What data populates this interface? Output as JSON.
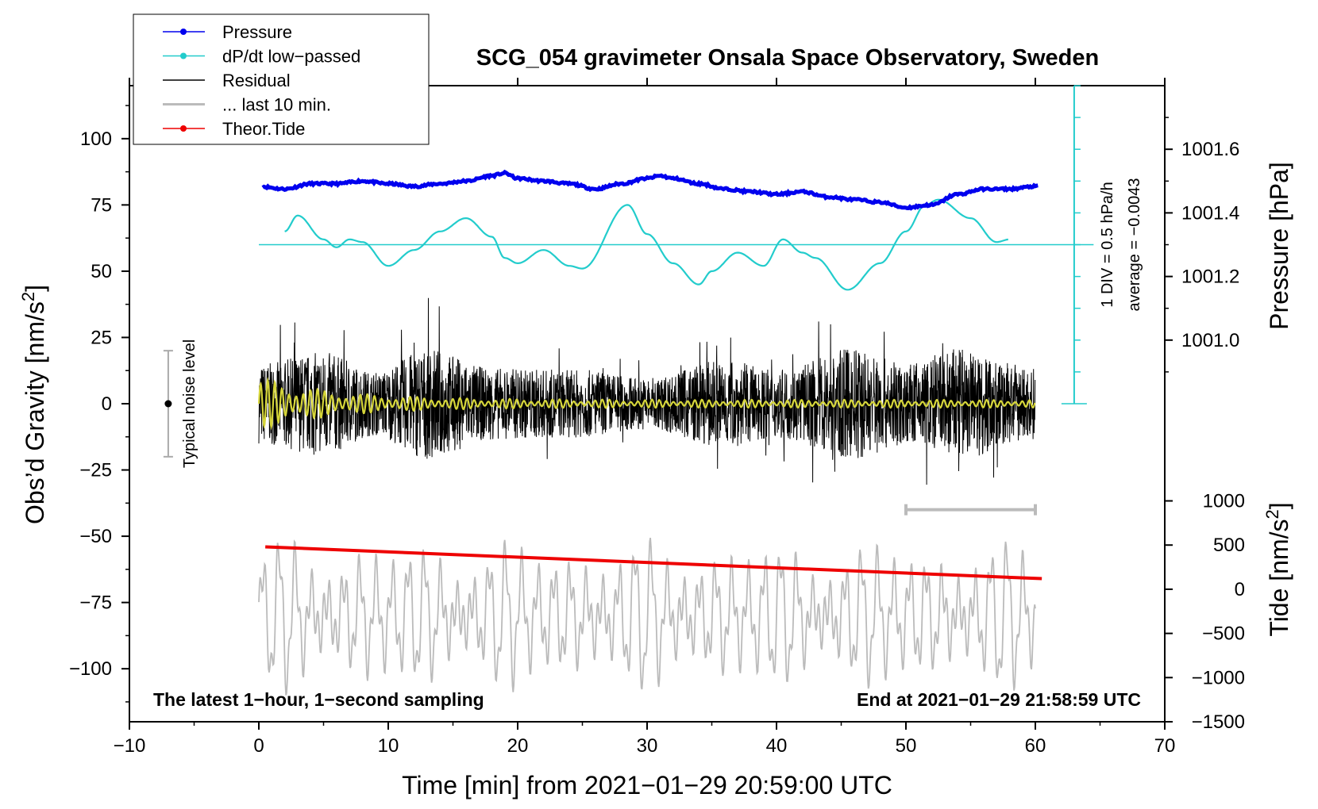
{
  "chart_data": {
    "type": "line",
    "title": "SCG_054 gravimeter Onsala Space Observatory, Sweden",
    "xlabel": "Time [min] from 2021−01−29 20:59:00 UTC",
    "ylabel_left": "Obs’d Gravity [nm/s²]",
    "ylabel_right_pressure": "Pressure [hPa]",
    "ylabel_right_tide": "Tide [nm/s²]",
    "xlim": [
      -10,
      70
    ],
    "ylim": [
      -120,
      120
    ],
    "x_ticks": [
      -10,
      0,
      10,
      20,
      30,
      40,
      50,
      60,
      70
    ],
    "x_tick_labels": [
      "−10",
      "0",
      "10",
      "20",
      "30",
      "40",
      "50",
      "60",
      "70"
    ],
    "y_ticks": [
      100,
      75,
      50,
      25,
      0,
      -25,
      -50,
      -75,
      -100
    ],
    "y_tick_labels": [
      "100",
      "75",
      "50",
      "25",
      "0",
      "−25",
      "−50",
      "−75",
      "−100"
    ],
    "pressure_axis": {
      "values": [
        1001.6,
        1001.4,
        1001.2,
        1001.0
      ],
      "labels": [
        "1001.6",
        "1001.4",
        "1001.2",
        "1001.0"
      ],
      "range": [
        1000.8,
        1001.8
      ]
    },
    "tide_axis": {
      "values": [
        1000,
        500,
        0,
        -500,
        -1000,
        -1500
      ],
      "labels": [
        "1000",
        "500",
        "0",
        "−500",
        "−1000",
        "−1500"
      ]
    },
    "legend": {
      "placement": "top-left",
      "entries": [
        {
          "label": "Pressure",
          "color": "#0000ee",
          "marker": true
        },
        {
          "label": "dP/dt low−passed",
          "color": "#22cccc",
          "marker": true
        },
        {
          "label": "Residual",
          "color": "#000000",
          "marker": false
        },
        {
          "label": "... last 10 min.",
          "color": "#bbbbbb",
          "marker": false
        },
        {
          "label": "Theor.Tide",
          "color": "#ee0000",
          "marker": true
        }
      ]
    },
    "series": [
      {
        "name": "Pressure",
        "color": "#0000ee",
        "x": [
          0,
          2,
          4,
          6,
          8,
          10,
          12,
          14,
          16,
          18,
          19,
          20,
          22,
          24,
          26,
          28,
          30,
          31,
          32,
          34,
          36,
          38,
          40,
          42,
          44,
          46,
          48,
          50,
          52,
          54,
          56,
          58,
          60
        ],
        "y": [
          82,
          81,
          83,
          83,
          84,
          83,
          82,
          83,
          84,
          86,
          87,
          85,
          84,
          83,
          81,
          83,
          85,
          86,
          85,
          83,
          81,
          80,
          79,
          80,
          78,
          77,
          76,
          74,
          75,
          79,
          81,
          81,
          82
        ]
      },
      {
        "name": "dP/dt low−passed",
        "color": "#22cccc",
        "x": [
          2,
          3,
          5,
          6,
          7,
          8,
          10,
          12,
          14,
          16,
          18,
          19,
          20,
          22,
          24,
          25,
          28.5,
          30,
          32,
          34,
          35,
          37,
          39,
          40.5,
          42,
          43,
          45.5,
          48,
          50,
          51.5,
          52.5,
          55,
          57,
          58
        ],
        "y": [
          65,
          71,
          62,
          59,
          62,
          61,
          52,
          58,
          65,
          70,
          63,
          55,
          53,
          58,
          52,
          51,
          75,
          64,
          53,
          45,
          50,
          57,
          52,
          62,
          57,
          55,
          43,
          53,
          65,
          75,
          77,
          70,
          61,
          62
        ]
      },
      {
        "name": "Residual",
        "color": "#000000",
        "x_range": [
          0,
          60
        ],
        "envelope": [
          {
            "x": 0,
            "a": 20
          },
          {
            "x": 5,
            "a": 26
          },
          {
            "x": 9,
            "a": 16
          },
          {
            "x": 13,
            "a": 28
          },
          {
            "x": 18,
            "a": 18
          },
          {
            "x": 25,
            "a": 17
          },
          {
            "x": 30,
            "a": 13
          },
          {
            "x": 36,
            "a": 22
          },
          {
            "x": 40,
            "a": 17
          },
          {
            "x": 46,
            "a": 28
          },
          {
            "x": 50,
            "a": 20
          },
          {
            "x": 54,
            "a": 28
          },
          {
            "x": 60,
            "a": 18
          }
        ]
      },
      {
        "name": "Low-passed residual (yellow)",
        "color": "#d6d63a",
        "x_range": [
          0,
          60
        ],
        "amplitude_start": 10,
        "amplitude_end": 1.5
      },
      {
        "name": "... last 10 min.",
        "color": "#bbbbbb",
        "x_range": [
          0,
          60
        ],
        "baseline": -80,
        "amplitude": 25
      },
      {
        "name": "Theor.Tide",
        "color": "#ee0000",
        "x": [
          0.5,
          60.5
        ],
        "y": [
          -54,
          -66
        ]
      }
    ],
    "noise_indicator": {
      "label": "Typical noise level",
      "center": 0,
      "range": [
        -20,
        20
      ],
      "x": -7
    },
    "scale_bar": {
      "label": "1 DIV = 0.5 hPa/h",
      "average_label": "average = −0.0043",
      "x": 63,
      "ticks": 11
    },
    "gray_bar": {
      "x": [
        50,
        60
      ],
      "y": -40
    },
    "annotations": {
      "bottom_left": "The latest 1−hour, 1−second sampling",
      "bottom_right": "End at 2021−01−29 21:58:59 UTC"
    }
  }
}
